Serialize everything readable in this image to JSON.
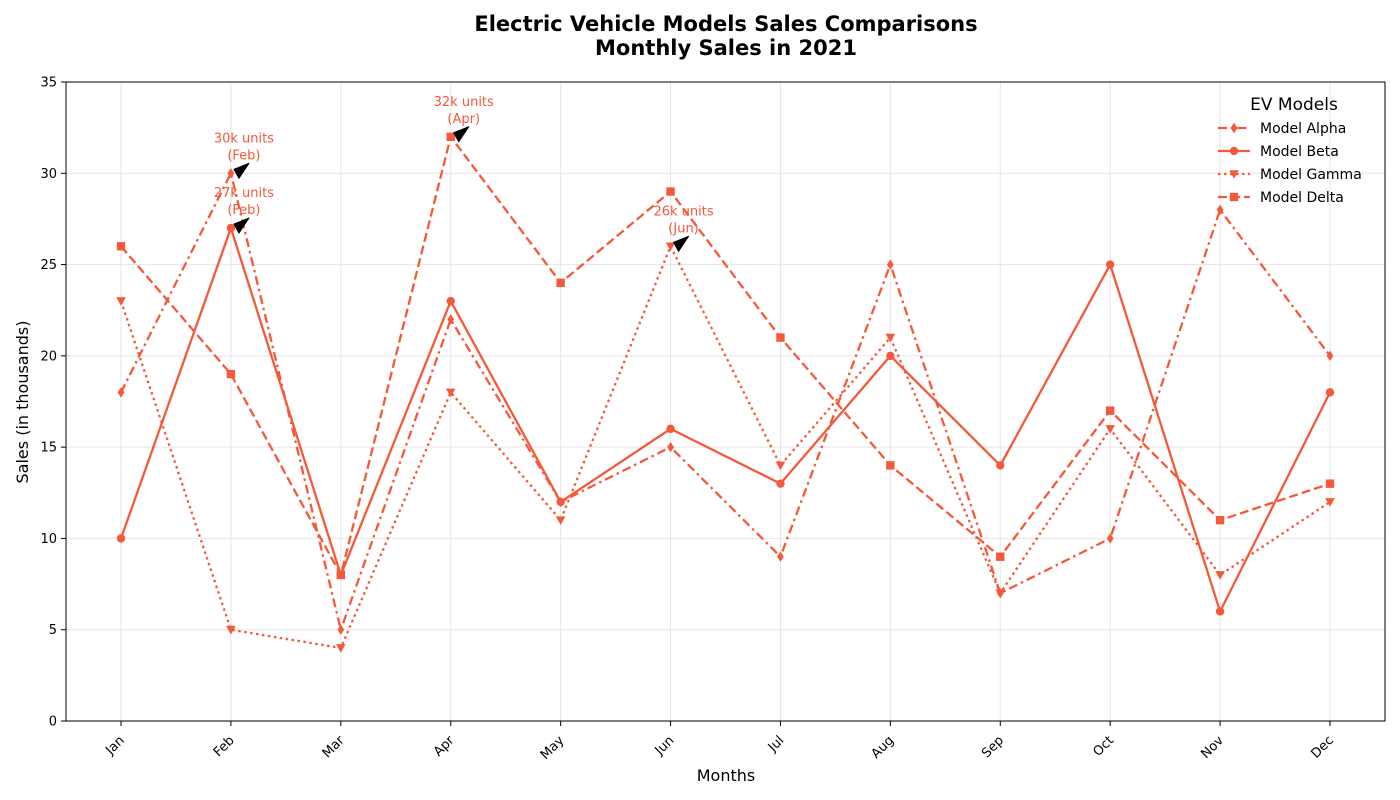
{
  "chart_data": {
    "type": "line",
    "title_line1": "Electric Vehicle Models Sales Comparisons",
    "title_line2": "Monthly Sales in 2021",
    "xlabel": "Months",
    "ylabel": "Sales (in thousands)",
    "categories": [
      "Jan",
      "Feb",
      "Mar",
      "Apr",
      "May",
      "Jun",
      "Jul",
      "Aug",
      "Sep",
      "Oct",
      "Nov",
      "Dec"
    ],
    "ylim": [
      0,
      35
    ],
    "yticks": [
      0,
      5,
      10,
      15,
      20,
      25,
      30,
      35
    ],
    "grid": true,
    "legend": {
      "title": "EV Models",
      "placement": "top-right"
    },
    "series": [
      {
        "name": "Model Alpha",
        "values": [
          18,
          30,
          5,
          22,
          12,
          15,
          9,
          25,
          7,
          10,
          28,
          20
        ],
        "marker": "diamond",
        "dash": "dashdot",
        "color": "#f4593a"
      },
      {
        "name": "Model Beta",
        "values": [
          10,
          27,
          8,
          23,
          12,
          16,
          13,
          20,
          14,
          25,
          6,
          18
        ],
        "marker": "circle",
        "dash": "solid",
        "color": "#f4593a"
      },
      {
        "name": "Model Gamma",
        "values": [
          23,
          5,
          4,
          18,
          11,
          26,
          14,
          21,
          7,
          16,
          8,
          12
        ],
        "marker": "triangle-down",
        "dash": "dotted",
        "color": "#f4593a"
      },
      {
        "name": "Model Delta",
        "values": [
          26,
          19,
          8,
          32,
          24,
          29,
          21,
          14,
          9,
          17,
          11,
          13
        ],
        "marker": "square",
        "dash": "dashed",
        "color": "#f4593a"
      }
    ],
    "annotations": [
      {
        "line1": "30k units",
        "line2": "(Feb)",
        "month": "Feb",
        "value": 30
      },
      {
        "line1": "27k units",
        "line2": "(Feb)",
        "month": "Feb",
        "value": 27
      },
      {
        "line1": "32k units",
        "line2": "(Apr)",
        "month": "Apr",
        "value": 32
      },
      {
        "line1": "26k units",
        "line2": "(Jun)",
        "month": "Jun",
        "value": 26
      }
    ]
  }
}
